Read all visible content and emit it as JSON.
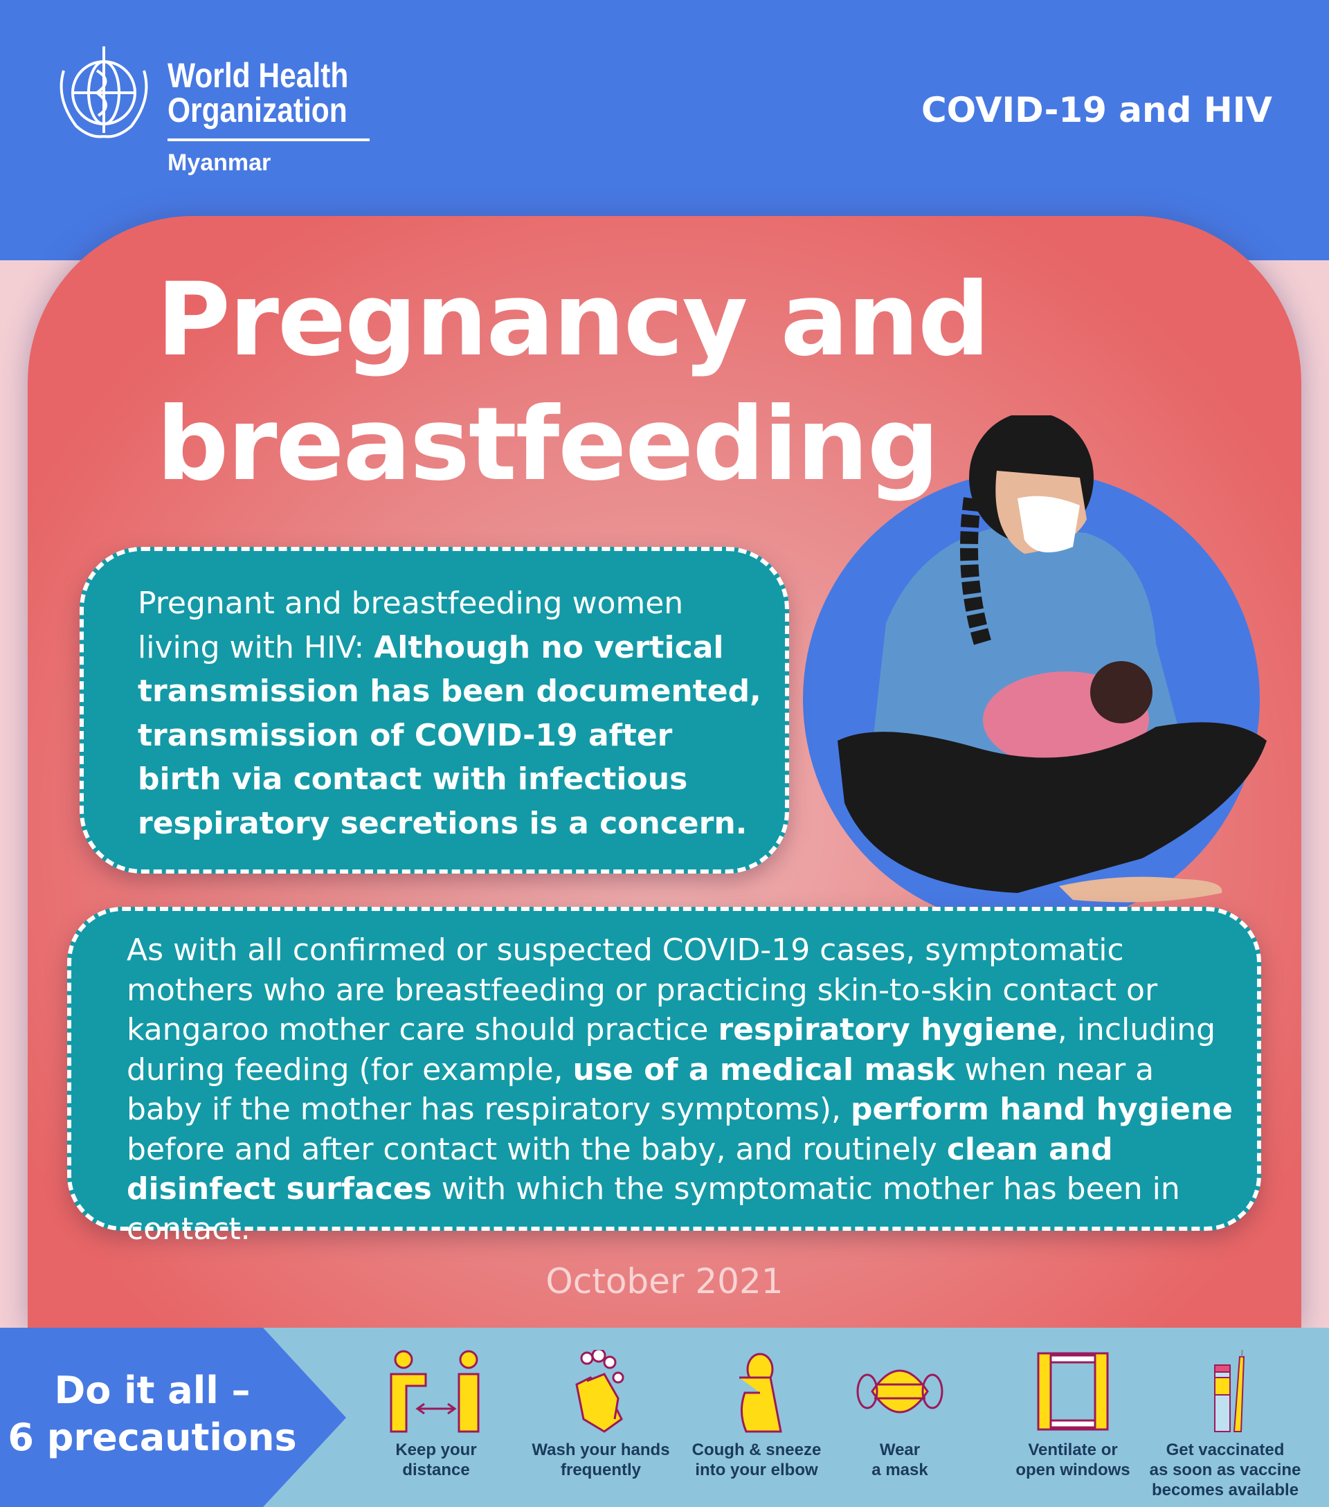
{
  "header": {
    "org_name_line1": "World Health",
    "org_name_line2": "Organization",
    "country": "Myanmar",
    "series_title": "COVID-19 and HIV"
  },
  "title": {
    "line1": "Pregnancy and",
    "line2": "breastfeeding"
  },
  "box1": {
    "t1": "Pregnant and breastfeeding women living with HIV: ",
    "b1": "Although no vertical transmission has been documented, transmission of COVID-19 after birth via contact with infectious respiratory secretions is a concern."
  },
  "box2": {
    "t1": "As with all confirmed or suspected COVID-19 cases, symptomatic mothers who are breastfeeding or practicing skin-to-skin contact or kangaroo mother care should practice ",
    "b1": "respiratory hygiene",
    "t2": ", including during feeding (for example, ",
    "b2": "use of a medical mask",
    "t3": " when near a baby if the mother has respiratory symptoms), ",
    "b3": "perform hand hygiene",
    "t4": " before and after contact with the baby, and routinely ",
    "b4": "clean and disinfect surfaces",
    "t5": " with which the symptomatic mother has been in contact."
  },
  "date": "October 2021",
  "footer": {
    "slogan_line1": "Do it all –",
    "slogan_line2": "6 precautions",
    "precautions": [
      {
        "icon": "distance-icon",
        "line1": "Keep your",
        "line2": "distance"
      },
      {
        "icon": "handwash-icon",
        "line1": "Wash your hands",
        "line2": "frequently"
      },
      {
        "icon": "elbow-cough-icon",
        "line1": "Cough & sneeze",
        "line2": "into your elbow"
      },
      {
        "icon": "mask-icon",
        "line1": "Wear",
        "line2": "a mask"
      },
      {
        "icon": "window-icon",
        "line1": "Ventilate or",
        "line2": "open windows"
      },
      {
        "icon": "vaccine-icon",
        "line1": "Get vaccinated",
        "line2": "as soon as vaccine",
        "line3": "becomes available"
      }
    ]
  },
  "colors": {
    "header_blue": "#4779e3",
    "card_red": "#e76566",
    "box_teal": "#139aa6",
    "footer_blue": "#8fc4dd",
    "icon_yellow": "#ffdc14",
    "icon_outline": "#9c1a5a",
    "label_navy": "#1b3a5c"
  }
}
